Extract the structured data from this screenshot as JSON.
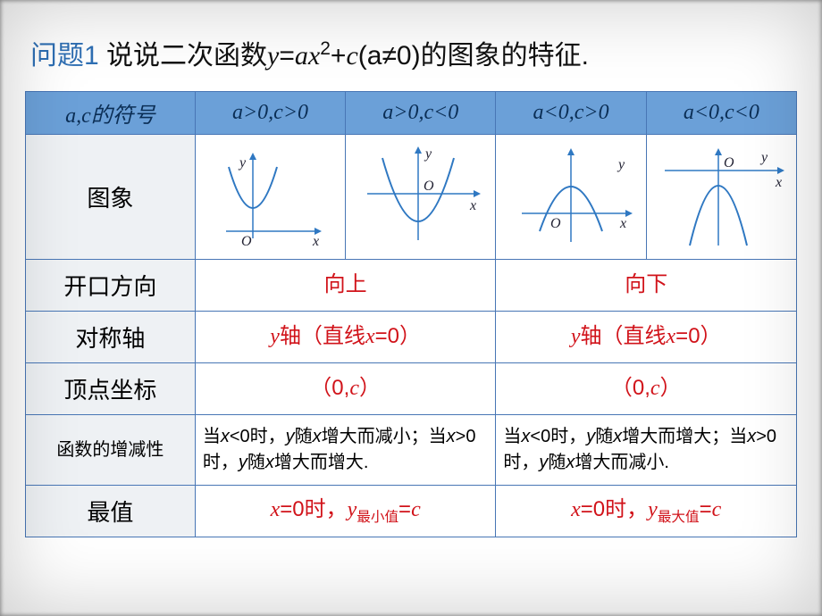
{
  "title": {
    "prefix": "问题1",
    "body_html": "说说二次函数<i>y</i>=<i>ax</i><sup style='font-size:0.7em'>2</sup>+<i>c</i>(a≠0)的图象的特征."
  },
  "colors": {
    "header_bg": "#6ba0d8",
    "header_fg": "#0b2e55",
    "border": "#4876b5",
    "row_head_bg": "#eef1f4",
    "red": "#d1131a",
    "curve": "#2f78c2"
  },
  "header": {
    "c0": "a,c的符号",
    "c1": "a>0,c>0",
    "c2": "a>0,c<0",
    "c3": "a<0,c>0",
    "c4": "a<0,c<0"
  },
  "rows": {
    "graph_label": "图象",
    "open_label": "开口方向",
    "open_up": "向上",
    "open_down": "向下",
    "axis_label": "对称轴",
    "axis_val_html": "<i>y</i>轴（直线<i>x</i>=0）",
    "vertex_label": "顶点坐标",
    "vertex_val_html": "（0,<i>c</i>）",
    "mono_label": "函数的增减性",
    "mono_up_html": "当<i>x</i><0时，<i>y</i>随<i>x</i>增大而减小；当<i>x</i>>0时，<i>y</i>随<i>x</i>增大而增大.",
    "mono_down_html": "当<i>x</i><0时，<i>y</i>随<i>x</i>增大而增大；当<i>x</i>>0时，<i>y</i>随<i>x</i>增大而减小.",
    "ext_label": "最值",
    "ext_min_html": "<i>x</i>=0时，<i>y</i><span class='sub'>最小值</span>=<i>c</i>",
    "ext_max_html": "<i>x</i>=0时，<i>y</i><span class='sub'>最大值</span>=<i>c</i>"
  },
  "graphs": {
    "g1": {
      "a_sign": "pos",
      "vertex_y": "above_origin"
    },
    "g2": {
      "a_sign": "pos",
      "vertex_y": "below_origin"
    },
    "g3": {
      "a_sign": "neg",
      "vertex_y": "above_origin"
    },
    "g4": {
      "a_sign": "neg",
      "vertex_y": "below_origin"
    }
  }
}
